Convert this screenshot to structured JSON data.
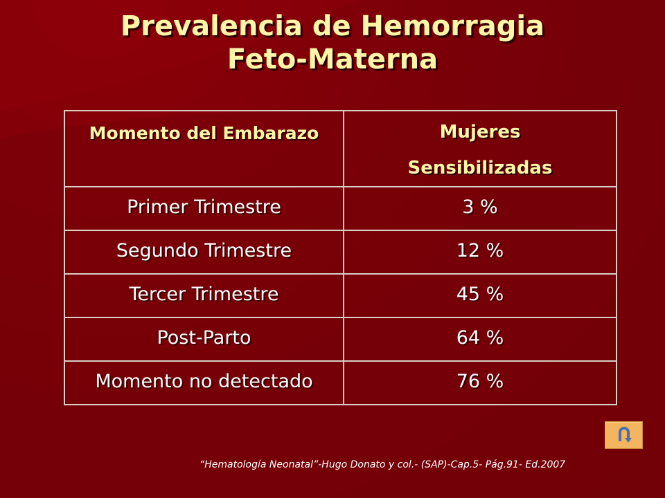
{
  "slide": {
    "title_line1": "Prevalencia de Hemorragia",
    "title_line2": "Feto-Materna",
    "colors": {
      "background": "#7a0008",
      "title": "#fff6a8",
      "table_text": "#ffffff",
      "table_border": "#d8d0c8",
      "button": "#f4b560"
    }
  },
  "table": {
    "header": {
      "col1": "Momento del Embarazo",
      "col2_line1": "Mujeres",
      "col2_line2": "Sensibilizadas"
    },
    "rows": [
      {
        "momento": "Primer Trimestre",
        "porcentaje": "3 %"
      },
      {
        "momento": "Segundo Trimestre",
        "porcentaje": "12 %"
      },
      {
        "momento": "Tercer Trimestre",
        "porcentaje": "45 %"
      },
      {
        "momento": "Post-Parto",
        "porcentaje": "64 %"
      },
      {
        "momento": "Momento no detectado",
        "porcentaje": "76 %"
      }
    ]
  },
  "back_button": {
    "icon": "u-turn-back-arrow-icon"
  },
  "citation": "“Hematología Neonatal”-Hugo Donato y col.- (SAP)-Cap.5- Pág.91- Ed.2007"
}
